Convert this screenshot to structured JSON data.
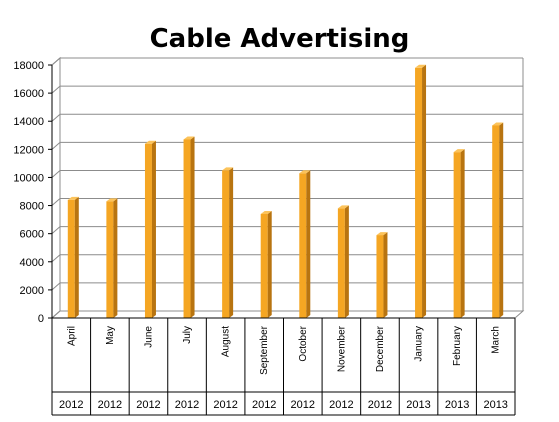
{
  "chart_data": {
    "type": "bar",
    "title": "Cable Advertising",
    "categories": [
      "April",
      "May",
      "June",
      "July",
      "August",
      "September",
      "October",
      "November",
      "December",
      "January",
      "February",
      "March"
    ],
    "years": [
      "2012",
      "2012",
      "2012",
      "2012",
      "2012",
      "2012",
      "2012",
      "2012",
      "2012",
      "2013",
      "2013",
      "2013"
    ],
    "values": [
      8400,
      8300,
      12400,
      12700,
      10500,
      7400,
      10300,
      7800,
      5900,
      17800,
      11800,
      13700
    ],
    "ylim": [
      0,
      18000
    ],
    "yticks": [
      0,
      2000,
      4000,
      6000,
      8000,
      10000,
      12000,
      14000,
      16000,
      18000
    ],
    "grid": true,
    "legend": false,
    "colors": {
      "bar_front": "#f5a623",
      "bar_side": "#b87410",
      "bar_top": "#fcc35a",
      "grid": "#8c8c8c"
    }
  }
}
